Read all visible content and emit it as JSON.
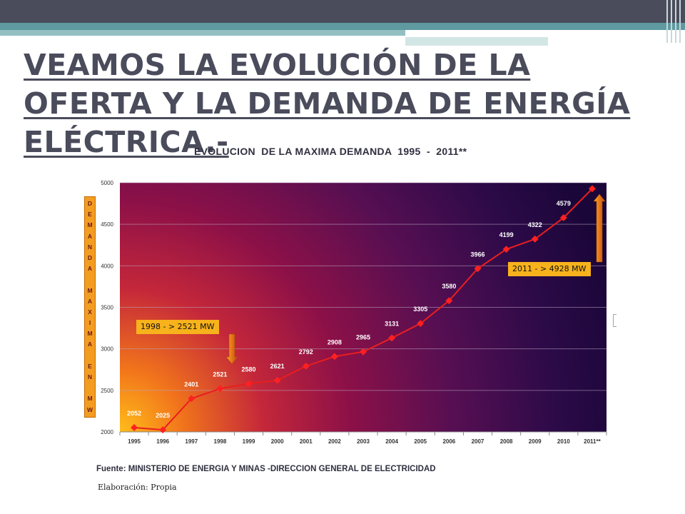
{
  "slide": {
    "title": "VEAMOS LA EVOLUCIÓN DE LA OFERTA Y LA DEMANDA DE ENERGÍA ELÉCTRICA.-"
  },
  "y_axis_label": "DEMANDA MAXIMA EN MW",
  "y_axis_label_chars": [
    "D",
    "E",
    "M",
    "A",
    "N",
    "D",
    "A",
    "",
    "M",
    "A",
    "X",
    "I",
    "M",
    "A",
    "",
    "E",
    "N",
    "",
    "M",
    "W"
  ],
  "callouts": {
    "left": "1998 - > 2521 MW",
    "right": "2011 - > 4928 MW"
  },
  "footer": {
    "source": "Fuente:  MINISTERIO DE ENERGIA Y MINAS -DIRECCION GENERAL DE ELECTRICIDAD",
    "elaboration": "Elaboración: Propia"
  },
  "colors": {
    "line": "#e81e1e",
    "marker": "#ff2020",
    "callout": "#f7b21c",
    "title": "#4a4c5c"
  },
  "chart_data": {
    "type": "line",
    "title": "EVOLUCION  DE LA MAXIMA DEMANDA  1995  -  2011**",
    "xlabel": "",
    "ylabel": "DEMANDA MAXIMA EN MW",
    "categories": [
      "1995",
      "1996",
      "1997",
      "1998",
      "1999",
      "2000",
      "2001",
      "2002",
      "2003",
      "2004",
      "2005",
      "2006",
      "2007",
      "2008",
      "2009",
      "2010",
      "2011**"
    ],
    "values": [
      2052,
      2025,
      2401,
      2521,
      2580,
      2621,
      2792,
      2908,
      2965,
      3131,
      3305,
      3580,
      3966,
      4199,
      4322,
      4579,
      4928
    ],
    "ylim": [
      2000,
      5000
    ],
    "yticks": [
      2000,
      2500,
      3000,
      3500,
      4000,
      4500,
      5000
    ],
    "grid": true,
    "legend": "none"
  }
}
